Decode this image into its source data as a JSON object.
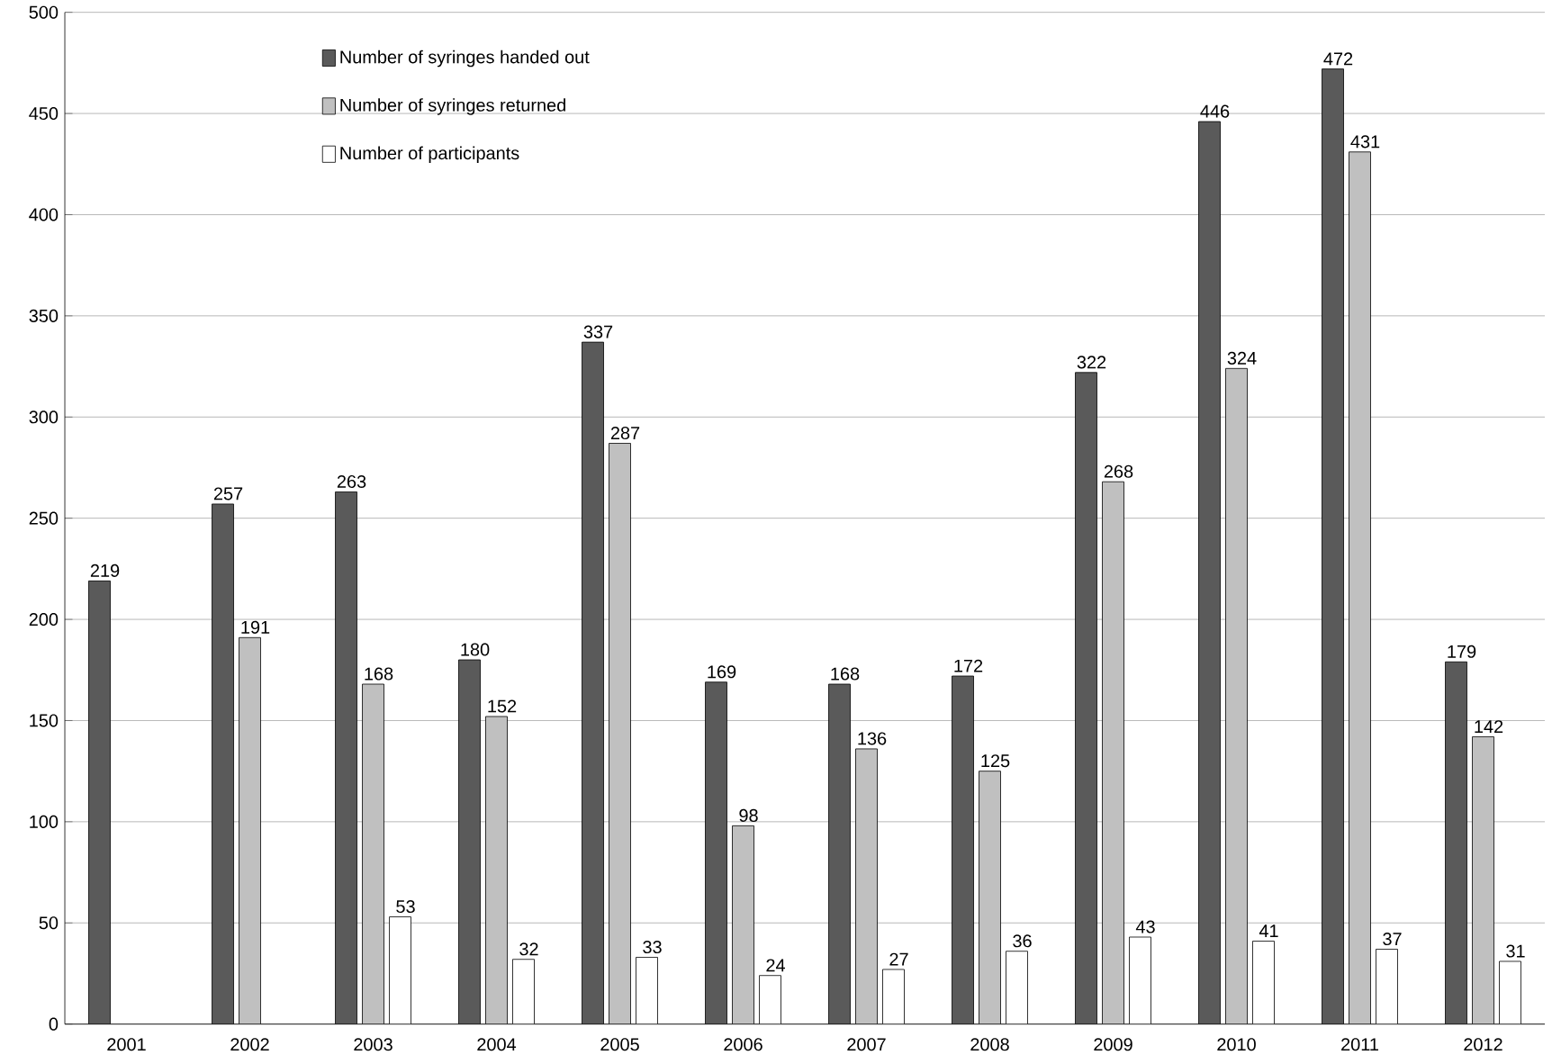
{
  "chart_data": {
    "type": "bar",
    "categories": [
      "2001",
      "2002",
      "2003",
      "2004",
      "2005",
      "2006",
      "2007",
      "2008",
      "2009",
      "2010",
      "2011",
      "2012"
    ],
    "series": [
      {
        "name": "Number of syringes handed out",
        "color": "#5a5a5a",
        "values": [
          219,
          257,
          263,
          180,
          337,
          169,
          168,
          172,
          322,
          446,
          472,
          179
        ]
      },
      {
        "name": "Number of syringes returned",
        "color": "#c0c0c0",
        "values": [
          null,
          191,
          168,
          152,
          287,
          98,
          136,
          125,
          268,
          324,
          431,
          142
        ]
      },
      {
        "name": "Number of participants",
        "color": "#ffffff",
        "values": [
          null,
          null,
          53,
          32,
          33,
          24,
          27,
          36,
          43,
          41,
          37,
          31
        ]
      }
    ],
    "ylim": [
      0,
      500
    ],
    "yticks": [
      0,
      50,
      100,
      150,
      200,
      250,
      300,
      350,
      400,
      450,
      500
    ],
    "grid": "y",
    "legend": "top left",
    "data_labels": true
  }
}
